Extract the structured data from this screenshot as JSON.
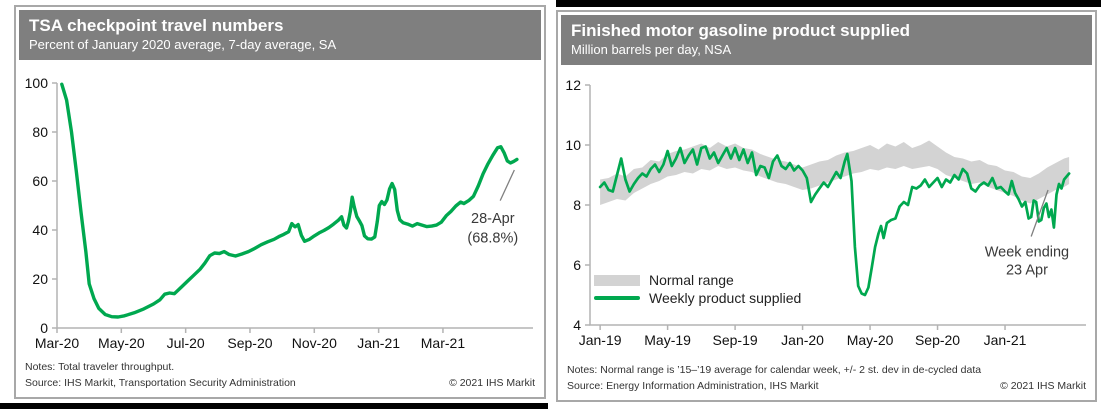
{
  "colors": {
    "green": "#00a84f",
    "band_gray": "#d3d3d3",
    "header_bg": "#7f7f7f",
    "header_text": "#ffffff",
    "axis": "#b3b3b3",
    "tick_label": "#111111",
    "note_text": "#333333",
    "pointer": "#808080",
    "panel_border": "#a8a8a8",
    "black_rule": "#000000"
  },
  "chart_data": [
    {
      "type": "line",
      "title": "TSA checkpoint travel numbers",
      "subtitle": "Percent of January 2020 average, 7-day average, SA",
      "notes": "Notes: Total traveler throughput.",
      "source": "Source: IHS Markit, Transportation Security Administration",
      "copyright": "© 2021 IHS Markit",
      "xlabel": "",
      "ylabel": "",
      "ylim": [
        0,
        100
      ],
      "yticks": [
        0,
        20,
        40,
        60,
        80,
        100
      ],
      "x_range": [
        0,
        14.8
      ],
      "xticks": {
        "m": [
          0,
          2,
          4,
          6,
          8,
          10,
          12
        ],
        "labels": [
          "Mar-20",
          "May-20",
          "Jul-20",
          "Sep-20",
          "Nov-20",
          "Jan-21",
          "Mar-21"
        ]
      },
      "margins": {
        "l": 41,
        "r": 11,
        "t": 20,
        "b": 265
      },
      "series": [
        {
          "name": "TSA traveler throughput (7-day average, SA)",
          "type": "line",
          "color": "#00a84f",
          "width": 3.4,
          "x": [
            0.15,
            0.3,
            0.45,
            0.6,
            0.75,
            0.9,
            1.0,
            1.15,
            1.3,
            1.5,
            1.7,
            1.9,
            2.1,
            2.4,
            2.7,
            3.0,
            3.2,
            3.35,
            3.5,
            3.65,
            3.85,
            4.05,
            4.25,
            4.45,
            4.6,
            4.75,
            4.9,
            5.05,
            5.2,
            5.35,
            5.55,
            5.75,
            5.95,
            6.15,
            6.35,
            6.55,
            6.75,
            6.9,
            7.05,
            7.2,
            7.3,
            7.4,
            7.5,
            7.6,
            7.7,
            7.85,
            8.0,
            8.15,
            8.3,
            8.45,
            8.6,
            8.75,
            8.85,
            8.92,
            9.0,
            9.06,
            9.12,
            9.18,
            9.24,
            9.32,
            9.4,
            9.48,
            9.56,
            9.66,
            9.78,
            9.88,
            9.96,
            10.02,
            10.1,
            10.18,
            10.26,
            10.34,
            10.42,
            10.5,
            10.58,
            10.66,
            10.76,
            10.9,
            11.05,
            11.2,
            11.35,
            11.5,
            11.65,
            11.8,
            11.95,
            12.1,
            12.25,
            12.4,
            12.55,
            12.65,
            12.8,
            12.95,
            13.1,
            13.25,
            13.4,
            13.55,
            13.7,
            13.8,
            13.9,
            14.0,
            14.1,
            14.2,
            14.3
          ],
          "y": [
            99.5,
            93,
            80,
            64,
            47,
            31,
            18,
            12,
            8,
            5.5,
            4.6,
            4.5,
            5.0,
            6.2,
            7.8,
            9.8,
            11.5,
            13.8,
            14.3,
            14.0,
            16.5,
            19,
            21.5,
            24,
            26.5,
            29.5,
            30.6,
            30.4,
            31.2,
            30.0,
            29.4,
            30.2,
            31.2,
            32.5,
            34,
            35.2,
            36.2,
            37.3,
            38.2,
            39.3,
            42.6,
            41.3,
            42.2,
            37.8,
            35.4,
            36.2,
            37.6,
            38.8,
            39.8,
            41,
            42.4,
            44,
            45.4,
            42,
            40.8,
            43.5,
            47.5,
            53.4,
            49.5,
            45.5,
            43.8,
            41.8,
            37.6,
            36.4,
            36.3,
            37.2,
            43.5,
            50,
            51.6,
            50.4,
            52.3,
            56.8,
            59,
            56.5,
            48,
            44.2,
            43,
            42.4,
            41.6,
            42.6,
            42,
            41.4,
            41.6,
            42,
            43.2,
            45.8,
            47.6,
            49.8,
            51.4,
            50.8,
            52,
            53.8,
            58,
            63,
            67,
            70.5,
            73.6,
            74,
            71.5,
            68.2,
            67.4,
            68,
            68.8
          ]
        }
      ],
      "annotation": {
        "lines": [
          "28-Apr",
          "(68.8%)"
        ],
        "x_m": 13.55,
        "y_vals": [
          45,
          37
        ],
        "pointer": {
          "x1_m": 13.78,
          "y1": 52,
          "x2_m": 14.22,
          "y2": 64.5
        }
      }
    },
    {
      "type": "line+band",
      "title": "Finished motor gasoline product supplied",
      "subtitle": "Million barrels per day, NSA",
      "notes": "Notes: Normal range is ’15–’19 average for calendar week, +/- 2 st. dev in de-cycled data",
      "source": "Source: Energy Information Administration, IHS Markit",
      "copyright": "© 2021 IHS Markit",
      "xlabel": "",
      "ylabel": "",
      "ylim": [
        4,
        12
      ],
      "yticks": [
        4,
        6,
        8,
        10,
        12
      ],
      "x_range": [
        -0.6,
        28.8
      ],
      "xticks": {
        "m": [
          0,
          4,
          8,
          12,
          16,
          20,
          24
        ],
        "labels": [
          "Jan-19",
          "May-19",
          "Sep-19",
          "Jan-20",
          "May-20",
          "Sep-20",
          "Jan-21"
        ]
      },
      "margins": {
        "l": 32,
        "r": 9,
        "t": 17,
        "b": 257
      },
      "legend": [
        {
          "label": "Normal range",
          "swatch": "band"
        },
        {
          "label": "Weekly product supplied",
          "swatch": "line"
        }
      ],
      "series": [
        {
          "name": "Normal range",
          "type": "band",
          "color": "#d3d3d3",
          "x": [
            0,
            0.5,
            1,
            1.5,
            2,
            2.5,
            3,
            3.5,
            4,
            4.5,
            5,
            5.5,
            6,
            6.5,
            7,
            7.5,
            8,
            8.5,
            9,
            9.5,
            10,
            10.5,
            11,
            11.5,
            12,
            12.5,
            13,
            13.5,
            14,
            14.5,
            15,
            15.5,
            16,
            16.5,
            17,
            17.5,
            18,
            18.5,
            19,
            19.5,
            20,
            20.5,
            21,
            21.5,
            22,
            22.5,
            23,
            23.5,
            24,
            24.5,
            25,
            25.5,
            26,
            26.5,
            27,
            27.5,
            27.8
          ],
          "lo": [
            8.0,
            8.1,
            8.2,
            8.15,
            8.4,
            8.55,
            8.7,
            8.8,
            8.95,
            9.0,
            9.1,
            9.05,
            9.2,
            9.15,
            9.3,
            9.2,
            9.25,
            9.15,
            9.1,
            8.95,
            8.85,
            8.75,
            8.7,
            8.6,
            8.5,
            8.55,
            8.65,
            8.75,
            8.85,
            8.95,
            9.05,
            9.1,
            9.2,
            9.15,
            9.25,
            9.2,
            9.3,
            9.2,
            9.25,
            9.3,
            9.2,
            9.0,
            8.9,
            8.8,
            8.7,
            8.75,
            8.6,
            8.5,
            8.4,
            8.3,
            8.15,
            8.05,
            8.2,
            8.35,
            8.5,
            8.6,
            8.7
          ],
          "hi": [
            8.85,
            8.9,
            9.05,
            8.95,
            9.2,
            9.25,
            9.5,
            9.45,
            9.7,
            9.8,
            9.85,
            9.95,
            10.05,
            9.9,
            10.1,
            9.95,
            10.05,
            9.9,
            9.85,
            9.7,
            9.6,
            9.5,
            9.45,
            9.35,
            9.25,
            9.35,
            9.45,
            9.5,
            9.65,
            9.75,
            9.8,
            9.9,
            10.0,
            9.85,
            10.05,
            9.95,
            10.1,
            9.9,
            10.0,
            10.15,
            9.95,
            9.75,
            9.6,
            9.55,
            9.45,
            9.5,
            9.35,
            9.3,
            9.15,
            9.1,
            8.95,
            8.9,
            9.05,
            9.25,
            9.4,
            9.55,
            9.6
          ]
        },
        {
          "name": "Weekly product supplied",
          "type": "line",
          "color": "#00a84f",
          "width": 2.7,
          "x": [
            0,
            0.25,
            0.5,
            0.75,
            1.0,
            1.25,
            1.5,
            1.75,
            2.0,
            2.25,
            2.5,
            2.75,
            3.0,
            3.25,
            3.5,
            3.75,
            4.0,
            4.25,
            4.5,
            4.75,
            5.0,
            5.25,
            5.5,
            5.75,
            6.0,
            6.25,
            6.5,
            6.75,
            7.0,
            7.25,
            7.5,
            7.75,
            8.0,
            8.25,
            8.5,
            8.75,
            9.0,
            9.25,
            9.5,
            9.75,
            10.0,
            10.25,
            10.5,
            10.75,
            11.0,
            11.25,
            11.5,
            11.75,
            12.0,
            12.25,
            12.5,
            12.75,
            13.0,
            13.25,
            13.5,
            13.75,
            14.0,
            14.25,
            14.5,
            14.65,
            14.9,
            15.1,
            15.3,
            15.5,
            15.7,
            15.9,
            16.1,
            16.3,
            16.5,
            16.65,
            16.8,
            17.0,
            17.25,
            17.5,
            17.75,
            18.0,
            18.25,
            18.5,
            18.75,
            19.0,
            19.25,
            19.5,
            19.75,
            20.0,
            20.25,
            20.5,
            20.75,
            21.0,
            21.25,
            21.5,
            21.75,
            22.0,
            22.25,
            22.5,
            22.75,
            23.0,
            23.25,
            23.5,
            23.75,
            24.0,
            24.2,
            24.4,
            24.6,
            24.8,
            25.0,
            25.2,
            25.4,
            25.55,
            25.7,
            25.85,
            26.0,
            26.15,
            26.3,
            26.45,
            26.6,
            26.75,
            26.9,
            27.05,
            27.2,
            27.35,
            27.5,
            27.65,
            27.8
          ],
          "y": [
            8.6,
            8.75,
            8.5,
            8.45,
            9.0,
            9.55,
            8.85,
            8.45,
            8.7,
            8.9,
            9.05,
            8.95,
            9.2,
            9.35,
            9.1,
            9.35,
            9.8,
            9.3,
            9.55,
            9.9,
            9.4,
            9.65,
            9.85,
            9.35,
            9.9,
            9.95,
            9.55,
            9.75,
            9.4,
            9.65,
            9.9,
            9.55,
            9.9,
            9.5,
            9.85,
            9.4,
            9.75,
            9.0,
            9.3,
            9.25,
            8.9,
            9.45,
            9.65,
            9.3,
            9.2,
            9.4,
            9.15,
            9.3,
            9.15,
            8.9,
            8.1,
            8.35,
            8.55,
            8.75,
            8.6,
            8.85,
            9.1,
            8.9,
            9.45,
            9.7,
            8.8,
            6.6,
            5.3,
            5.05,
            5.0,
            5.25,
            5.9,
            6.6,
            7.05,
            7.3,
            6.9,
            7.4,
            7.5,
            7.55,
            7.95,
            8.1,
            8.0,
            8.6,
            8.55,
            8.65,
            8.85,
            8.6,
            8.75,
            8.9,
            8.6,
            8.85,
            8.75,
            9.0,
            8.85,
            9.2,
            9.05,
            8.55,
            8.45,
            8.65,
            8.75,
            8.65,
            8.9,
            8.55,
            8.6,
            8.45,
            8.35,
            8.8,
            8.4,
            8.2,
            7.95,
            8.1,
            7.55,
            7.6,
            8.15,
            8.1,
            7.45,
            7.5,
            7.9,
            8.05,
            7.6,
            7.85,
            7.25,
            8.35,
            8.7,
            8.55,
            8.85,
            8.95,
            9.05
          ]
        }
      ],
      "annotation": {
        "lines": [
          "Week ending",
          "23 Apr"
        ],
        "x_m": 25.3,
        "y_vals": [
          6.45,
          5.85
        ],
        "pointer": {
          "x1_m": 25.55,
          "y1": 6.95,
          "x2_m": 26.55,
          "y2": 8.5
        }
      }
    }
  ]
}
